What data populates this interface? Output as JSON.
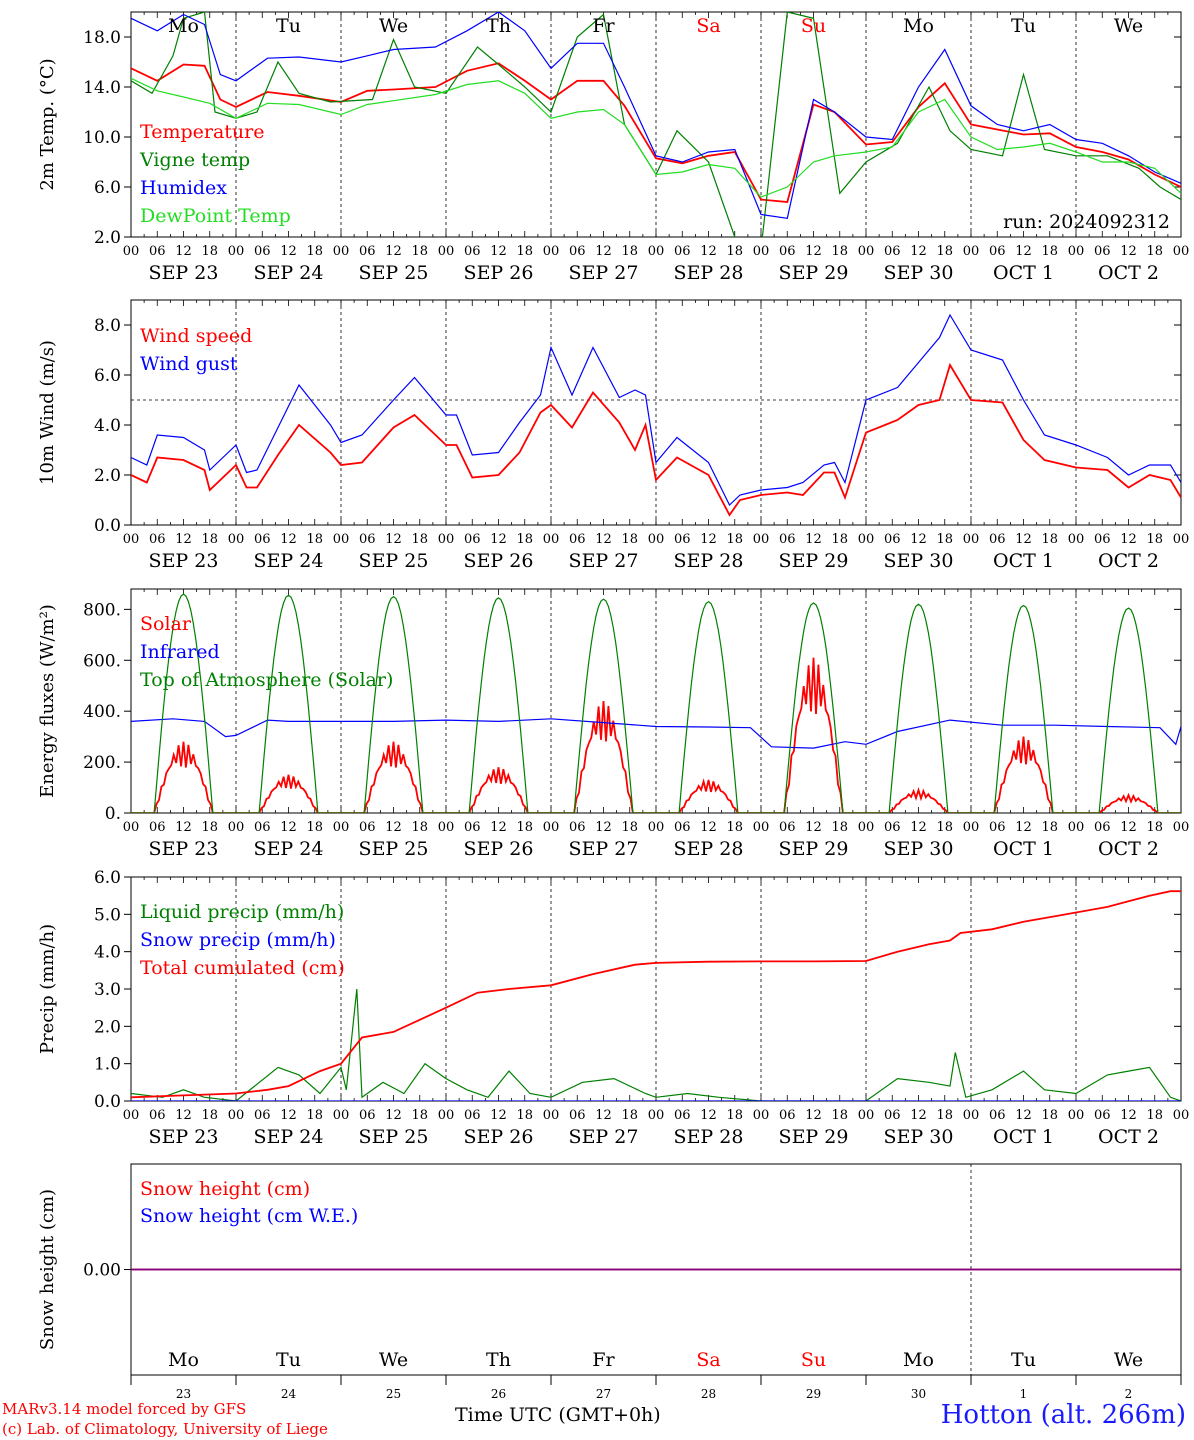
{
  "run_label": "run: 2024092312",
  "footer": {
    "credit1": "MARv3.14 model forced by GFS",
    "credit2": "(c) Lab. of Climatology, University of Liege",
    "time_label": "Time UTC (GMT+0h)",
    "station": "Hotton (alt. 266m)"
  },
  "colors": {
    "red": "#ff0000",
    "green": "#008000",
    "blue": "#0000ff",
    "lightgreen": "#22dd22",
    "purple": "#800080",
    "weekend": "#ff0000"
  },
  "time_axis": {
    "hour_ticks": [
      "00",
      "06",
      "12",
      "18"
    ],
    "date_labels": [
      "SEP 23",
      "SEP 24",
      "SEP 25",
      "SEP 26",
      "SEP 27",
      "SEP 28",
      "SEP 29",
      "SEP 30",
      "OCT  1",
      "OCT  2"
    ],
    "weekday_labels": [
      "Mo",
      "Tu",
      "We",
      "Th",
      "Fr",
      "Sa",
      "Su",
      "Mo",
      "Tu",
      "We"
    ],
    "weekday_numbers": [
      "23",
      "24",
      "25",
      "26",
      "27",
      "28",
      "29",
      "30",
      "1",
      "2"
    ],
    "weekend_days": [
      5,
      6
    ]
  },
  "chart_data": [
    {
      "type": "line",
      "ylabel": "2m Temp. (°C)",
      "yticks": [
        "2.0",
        "6.0",
        "10.0",
        "14.0",
        "18.0"
      ],
      "ylim": [
        2,
        20
      ],
      "x_unit": "days since SEP 23 00 UTC",
      "series": [
        {
          "name": "Temperature",
          "color": "red",
          "x": [
            0,
            0.25,
            0.5,
            0.7,
            0.85,
            1,
            1.3,
            1.6,
            2,
            2.25,
            2.5,
            2.9,
            3.2,
            3.5,
            3.75,
            4,
            4.25,
            4.5,
            4.7,
            5,
            5.25,
            5.5,
            5.75,
            6,
            6.25,
            6.5,
            6.7,
            7,
            7.25,
            7.5,
            7.75,
            8,
            8.25,
            8.5,
            8.75,
            9,
            9.25,
            9.5,
            9.75,
            10
          ],
          "y": [
            15.5,
            14.5,
            15.8,
            15.7,
            13.0,
            12.4,
            13.6,
            13.3,
            12.8,
            13.7,
            13.8,
            14.0,
            15.3,
            15.9,
            14.5,
            13.0,
            14.5,
            14.5,
            12.5,
            8.3,
            7.9,
            8.5,
            8.8,
            5.0,
            4.8,
            12.6,
            12.0,
            9.4,
            9.6,
            12.4,
            14.3,
            11.0,
            10.6,
            10.2,
            10.3,
            9.2,
            8.8,
            8.2,
            7.0,
            6.0
          ]
        },
        {
          "name": "Vigne temp",
          "color": "green",
          "x": [
            0,
            0.2,
            0.4,
            0.5,
            0.7,
            0.8,
            1,
            1.2,
            1.4,
            1.6,
            1.9,
            2.3,
            2.5,
            2.7,
            3,
            3.3,
            3.5,
            3.75,
            4,
            4.25,
            4.5,
            4.7,
            5,
            5.2,
            5.5,
            5.75,
            6,
            6.25,
            6.5,
            6.75,
            7,
            7.3,
            7.6,
            7.8,
            8,
            8.3,
            8.5,
            8.7,
            9,
            9.3,
            9.6,
            9.8,
            10
          ],
          "y": [
            14.5,
            13.5,
            16.5,
            19.5,
            20.0,
            12.0,
            11.5,
            12.0,
            16.0,
            13.5,
            12.8,
            13.0,
            17.8,
            14.0,
            13.5,
            17.2,
            15.8,
            14.0,
            12.0,
            18.0,
            19.8,
            11.0,
            7.0,
            10.5,
            8.0,
            2.0,
            1.0,
            20.0,
            19.5,
            5.5,
            8.0,
            9.5,
            14.0,
            10.5,
            9.0,
            8.5,
            15.0,
            9.0,
            8.5,
            8.5,
            7.5,
            6.0,
            5.0
          ]
        },
        {
          "name": "Humidex",
          "color": "blue",
          "x": [
            0,
            0.25,
            0.5,
            0.7,
            0.85,
            1,
            1.3,
            1.6,
            2,
            2.25,
            2.5,
            2.9,
            3.2,
            3.5,
            3.75,
            4,
            4.25,
            4.5,
            4.7,
            5,
            5.25,
            5.5,
            5.75,
            6,
            6.25,
            6.5,
            6.7,
            7,
            7.25,
            7.5,
            7.75,
            8,
            8.25,
            8.5,
            8.75,
            9,
            9.25,
            9.5,
            9.75,
            10
          ],
          "y": [
            19.5,
            18.5,
            19.8,
            19.0,
            15.0,
            14.5,
            16.3,
            16.4,
            16.0,
            16.5,
            17.0,
            17.2,
            18.5,
            20.0,
            18.5,
            15.5,
            17.5,
            17.5,
            14.0,
            8.5,
            8.0,
            8.8,
            9.0,
            3.8,
            3.5,
            13.0,
            12.0,
            10.0,
            9.8,
            14.0,
            17.0,
            12.5,
            11.0,
            10.5,
            11.0,
            9.8,
            9.5,
            8.5,
            7.2,
            6.3
          ]
        },
        {
          "name": "DewPoint Temp",
          "color": "lightgreen",
          "x": [
            0,
            0.25,
            0.5,
            0.75,
            1,
            1.3,
            1.6,
            2,
            2.25,
            2.5,
            2.9,
            3.2,
            3.5,
            3.75,
            4,
            4.25,
            4.5,
            4.7,
            5,
            5.25,
            5.5,
            5.75,
            6,
            6.25,
            6.5,
            6.7,
            7,
            7.25,
            7.5,
            7.75,
            8,
            8.25,
            8.5,
            8.75,
            9,
            9.25,
            9.5,
            9.75,
            10
          ],
          "y": [
            14.7,
            13.7,
            13.2,
            12.7,
            11.5,
            12.7,
            12.6,
            11.8,
            12.6,
            12.9,
            13.4,
            14.2,
            14.5,
            13.5,
            11.5,
            12.0,
            12.2,
            11.0,
            7.0,
            7.2,
            7.8,
            7.5,
            5.2,
            6.0,
            8.0,
            8.5,
            8.8,
            9.2,
            12.0,
            13.0,
            10.0,
            9.0,
            9.2,
            9.5,
            8.8,
            8.0,
            8.0,
            7.5,
            5.5
          ]
        }
      ]
    },
    {
      "type": "line",
      "ylabel": "10m Wind (m/s)",
      "yticks": [
        "0.0",
        "2.0",
        "4.0",
        "6.0",
        "8.0"
      ],
      "ylim": [
        0,
        9
      ],
      "reference_line": 5.0,
      "series": [
        {
          "name": "Wind speed",
          "color": "red",
          "x": [
            0,
            0.15,
            0.25,
            0.5,
            0.7,
            0.75,
            1,
            1.1,
            1.2,
            1.4,
            1.6,
            1.9,
            2,
            2.2,
            2.5,
            2.7,
            3,
            3.1,
            3.25,
            3.5,
            3.7,
            3.9,
            4,
            4.2,
            4.4,
            4.65,
            4.8,
            4.9,
            5,
            5.2,
            5.5,
            5.7,
            5.8,
            6,
            6.25,
            6.4,
            6.6,
            6.7,
            6.8,
            7,
            7.3,
            7.5,
            7.7,
            7.8,
            8,
            8.3,
            8.5,
            8.7,
            9,
            9.3,
            9.5,
            9.7,
            9.9,
            10
          ],
          "y": [
            2.0,
            1.7,
            2.7,
            2.6,
            2.2,
            1.4,
            2.4,
            1.5,
            1.5,
            2.8,
            4.0,
            2.9,
            2.4,
            2.5,
            3.9,
            4.4,
            3.2,
            3.2,
            1.9,
            2.0,
            2.9,
            4.5,
            4.8,
            3.9,
            5.3,
            4.1,
            3.0,
            4.0,
            1.8,
            2.7,
            2.0,
            0.4,
            1.0,
            1.2,
            1.3,
            1.2,
            2.1,
            2.1,
            1.1,
            3.7,
            4.2,
            4.8,
            5.0,
            6.4,
            5.0,
            4.9,
            3.4,
            2.6,
            2.3,
            2.2,
            1.5,
            2.0,
            1.8,
            1.1
          ]
        },
        {
          "name": "Wind gust",
          "color": "blue",
          "x": [
            0,
            0.15,
            0.25,
            0.5,
            0.7,
            0.75,
            1,
            1.1,
            1.2,
            1.4,
            1.6,
            1.9,
            2,
            2.2,
            2.5,
            2.7,
            3,
            3.1,
            3.25,
            3.5,
            3.7,
            3.9,
            4,
            4.2,
            4.4,
            4.65,
            4.8,
            4.9,
            5,
            5.2,
            5.5,
            5.7,
            5.8,
            6,
            6.25,
            6.4,
            6.6,
            6.7,
            6.8,
            7,
            7.3,
            7.5,
            7.7,
            7.8,
            8,
            8.3,
            8.5,
            8.7,
            9,
            9.3,
            9.5,
            9.7,
            9.9,
            10
          ],
          "y": [
            2.7,
            2.4,
            3.6,
            3.5,
            3.0,
            2.2,
            3.2,
            2.1,
            2.2,
            3.9,
            5.6,
            4.0,
            3.3,
            3.6,
            5.0,
            5.9,
            4.4,
            4.4,
            2.8,
            2.9,
            4.1,
            5.2,
            7.1,
            5.2,
            7.1,
            5.1,
            5.4,
            5.2,
            2.5,
            3.5,
            2.5,
            0.8,
            1.2,
            1.4,
            1.5,
            1.7,
            2.4,
            2.5,
            1.7,
            5.0,
            5.5,
            6.5,
            7.5,
            8.4,
            7.0,
            6.6,
            5.0,
            3.6,
            3.2,
            2.7,
            2.0,
            2.4,
            2.4,
            1.7
          ]
        }
      ]
    },
    {
      "type": "line",
      "ylabel": "Energy fluxes (W/m²)",
      "yticks": [
        "0.",
        "200.",
        "400.",
        "600.",
        "800."
      ],
      "ylim": [
        0,
        880
      ],
      "series": [
        {
          "name": "Solar",
          "color": "red",
          "peaks": [
            280,
            150,
            280,
            180,
            440,
            130,
            610,
            90,
            300,
            70
          ]
        },
        {
          "name": "Infrared",
          "color": "blue",
          "x": [
            0,
            0.4,
            0.7,
            0.9,
            1,
            1.3,
            1.5,
            2,
            2.5,
            3,
            3.5,
            4,
            4.5,
            5,
            5.5,
            5.9,
            6.1,
            6.5,
            6.8,
            7,
            7.3,
            7.8,
            8.3,
            8.8,
            9.3,
            9.8,
            9.95,
            10
          ],
          "y": [
            360,
            370,
            360,
            300,
            305,
            365,
            360,
            360,
            360,
            365,
            360,
            370,
            355,
            340,
            338,
            335,
            260,
            255,
            280,
            270,
            320,
            365,
            345,
            345,
            340,
            335,
            270,
            340
          ]
        },
        {
          "name": "Top of Atmosphere (Solar)",
          "color": "green",
          "peaks": [
            860,
            855,
            850,
            845,
            840,
            830,
            825,
            820,
            815,
            805
          ]
        }
      ]
    },
    {
      "type": "line",
      "ylabel": "Precip (mm/h)",
      "yticks": [
        "0.0",
        "1.0",
        "2.0",
        "3.0",
        "4.0",
        "5.0",
        "6.0"
      ],
      "ylim": [
        0,
        6
      ],
      "series": [
        {
          "name": "Liquid precip (mm/h)",
          "color": "green",
          "x": [
            0,
            0.3,
            0.5,
            0.7,
            1,
            1.4,
            1.6,
            1.8,
            2,
            2.05,
            2.15,
            2.2,
            2.4,
            2.6,
            2.8,
            3,
            3.2,
            3.4,
            3.6,
            3.8,
            4,
            4.3,
            4.6,
            4.9,
            5,
            5.3,
            5.6,
            6,
            6.5,
            7,
            7.3,
            7.6,
            7.8,
            7.85,
            7.95,
            8.2,
            8.5,
            8.7,
            9,
            9.3,
            9.5,
            9.7,
            9.9,
            10
          ],
          "y": [
            0.2,
            0.1,
            0.3,
            0.1,
            0.0,
            0.9,
            0.7,
            0.2,
            0.9,
            0.3,
            3.0,
            0.1,
            0.5,
            0.2,
            1.0,
            0.6,
            0.3,
            0.1,
            0.8,
            0.2,
            0.1,
            0.5,
            0.6,
            0.2,
            0.1,
            0.2,
            0.1,
            0.0,
            0.0,
            0.0,
            0.6,
            0.5,
            0.4,
            1.3,
            0.1,
            0.3,
            0.8,
            0.3,
            0.2,
            0.7,
            0.8,
            0.9,
            0.1,
            0.0
          ]
        },
        {
          "name": "Snow precip (mm/h)",
          "color": "blue",
          "x": [
            0,
            10
          ],
          "y": [
            0,
            0
          ]
        },
        {
          "name": "Total cumulated (cm)",
          "color": "red",
          "x": [
            0,
            0.5,
            1,
            1.3,
            1.5,
            1.8,
            2,
            2.2,
            2.5,
            3,
            3.3,
            3.6,
            4,
            4.4,
            4.8,
            5,
            5.5,
            6,
            6.5,
            7,
            7.3,
            7.6,
            7.8,
            7.9,
            8.2,
            8.5,
            8.8,
            9,
            9.3,
            9.5,
            9.7,
            9.9,
            10
          ],
          "y": [
            0.1,
            0.15,
            0.2,
            0.3,
            0.4,
            0.8,
            1.0,
            1.7,
            1.85,
            2.5,
            2.9,
            3.0,
            3.1,
            3.4,
            3.65,
            3.7,
            3.73,
            3.74,
            3.74,
            3.75,
            4.0,
            4.2,
            4.3,
            4.5,
            4.6,
            4.8,
            4.95,
            5.05,
            5.2,
            5.35,
            5.5,
            5.62,
            5.62
          ]
        }
      ]
    },
    {
      "type": "line",
      "ylabel": "Snow height (cm)",
      "yticks": [
        "0.00"
      ],
      "ylim": [
        -1,
        1
      ],
      "series": [
        {
          "name": "Snow height (cm)",
          "color": "red",
          "x": [
            0,
            10
          ],
          "y": [
            0,
            0
          ]
        },
        {
          "name": "Snow height (cm W.E.)",
          "color": "blue",
          "x": [
            0,
            10
          ],
          "y": [
            0,
            0
          ]
        }
      ]
    }
  ]
}
